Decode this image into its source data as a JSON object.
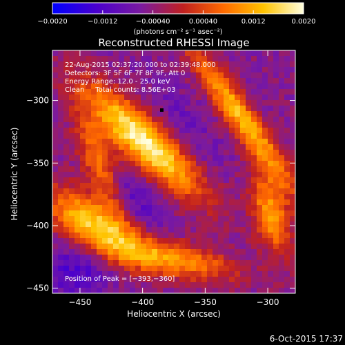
{
  "colorbar": {
    "ticks": [
      "-0.0020",
      "-0.0012",
      "-0.00040",
      "0.00040",
      "0.0012",
      "0.0020"
    ],
    "unit_label": "(photons cm⁻² s⁻¹ asec⁻²)",
    "range": [
      -0.002,
      0.002
    ],
    "colors": [
      "#0000ff",
      "#4b00cc",
      "#7a1aa0",
      "#c02020",
      "#ff6a00",
      "#ffc300",
      "#ffffe0"
    ]
  },
  "chart_data": {
    "type": "heatmap",
    "title": "Reconstructed RHESSI Image",
    "xlabel": "Heliocentric X (arcsec)",
    "ylabel": "Heliocentric Y (arcsec)",
    "xlim": [
      -472,
      -278
    ],
    "ylim": [
      -454,
      -260
    ],
    "x_ticks": [
      -450,
      -400,
      -350,
      -300
    ],
    "y_ticks": [
      -300,
      -350,
      -400,
      -450
    ],
    "x_tick_labels": [
      "−450",
      "−400",
      "−350",
      "−300"
    ],
    "y_tick_labels": [
      "−300",
      "−350",
      "−400",
      "−450"
    ],
    "peak": [
      -393,
      -360
    ],
    "annotations": [
      "22-Aug-2015 02:37:20.000 to 02:39:48.000",
      "Detectors: 3F 5F 6F 7F 8F 9F, Att 0",
      "Energy Range: 12.0 - 25.0 keV",
      "Clean     Total counts: 8.56E+03"
    ],
    "peak_label": "Position of Peak = [−393,−360]"
  },
  "footer": {
    "timestamp": "6-Oct-2015 17:37"
  }
}
